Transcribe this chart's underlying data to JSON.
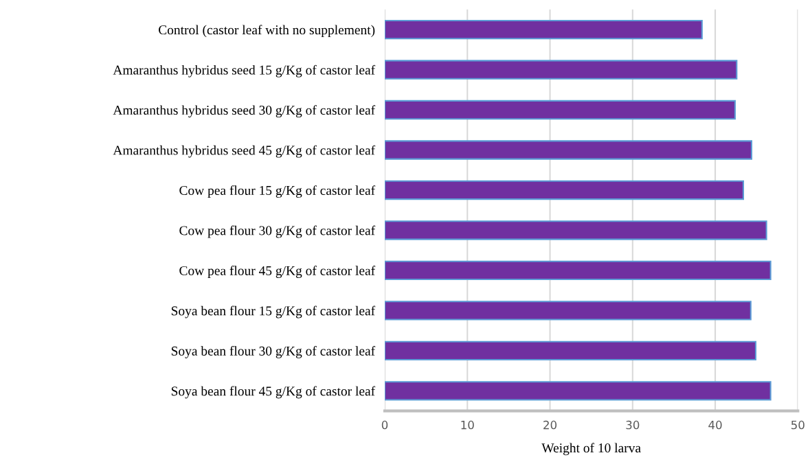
{
  "chart_data": {
    "type": "bar",
    "orientation": "horizontal",
    "xlabel": "Weight of 10 larva",
    "categories": [
      "Control (castor leaf with no supplement)",
      "Amaranthus hybridus seed 15 g/Kg of castor leaf",
      "Amaranthus hybridus seed 30 g/Kg of castor leaf",
      "Amaranthus hybridus seed 45 g/Kg of castor leaf",
      "Cow pea flour 15 g/Kg of castor leaf",
      "Cow pea flour 30 g/Kg of castor leaf",
      "Cow pea flour 45 g/Kg of castor leaf",
      "Soya bean flour 15 g/Kg of castor leaf",
      "Soya bean flour 30 g/Kg of castor leaf",
      "Soya bean flour 45 g/Kg of castor leaf"
    ],
    "values": [
      38.4,
      42.6,
      42.4,
      44.4,
      43.4,
      46.2,
      46.7,
      44.3,
      44.9,
      46.7
    ],
    "color": "#7030a0",
    "xlim": [
      0,
      50
    ],
    "xticks": [
      0,
      10,
      20,
      30,
      40,
      50
    ],
    "grid": "x",
    "legend": false
  }
}
